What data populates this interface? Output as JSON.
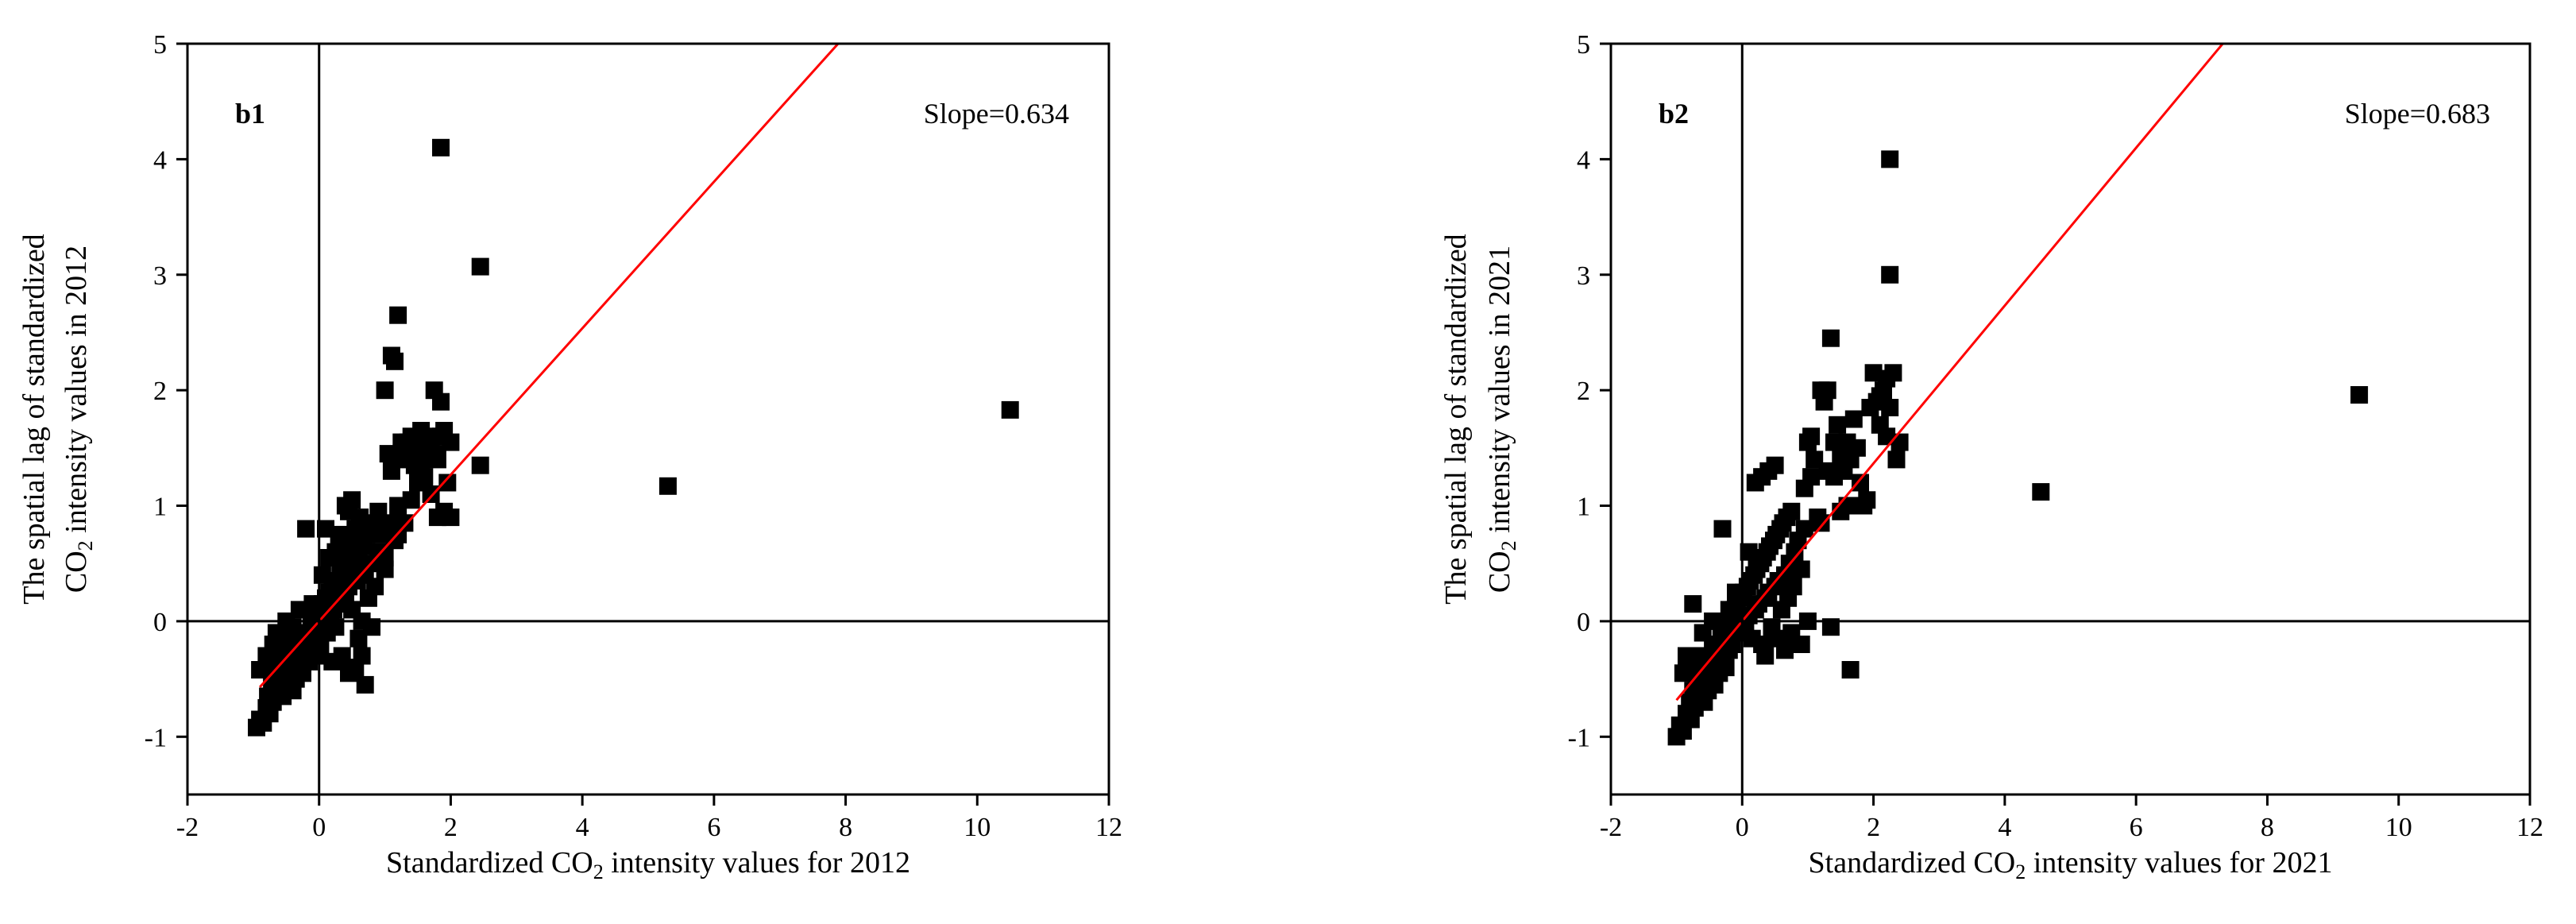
{
  "chart_data": [
    {
      "type": "scatter",
      "panel_label": "b1",
      "annotation": "Slope=0.634",
      "xlabel_parts": [
        "Standardized CO",
        "2",
        "  intensity values for 2012"
      ],
      "ylabel_line1": "The spatial lag of standardized",
      "ylabel_line2_parts": [
        "CO",
        "2",
        " intensity values in 2012"
      ],
      "xlim": [
        -2,
        12
      ],
      "ylim": [
        -1.5,
        5
      ],
      "xticks": [
        -2,
        0,
        2,
        4,
        6,
        8,
        10,
        12
      ],
      "yticks": [
        -1,
        0,
        1,
        2,
        3,
        4,
        5
      ],
      "grid": false,
      "reference_lines": {
        "x": 0,
        "y": 0
      },
      "fit_line": {
        "slope": 0.634,
        "x_start": -0.9,
        "x_end": 8.2,
        "color": "#ff0000"
      },
      "marker_color": "#000000",
      "points": [
        [
          -0.95,
          -0.92
        ],
        [
          -0.9,
          -0.85
        ],
        [
          -0.85,
          -0.88
        ],
        [
          -0.8,
          -0.75
        ],
        [
          -0.78,
          -0.65
        ],
        [
          -0.75,
          -0.8
        ],
        [
          -0.72,
          -0.55
        ],
        [
          -0.7,
          -0.7
        ],
        [
          -0.68,
          -0.45
        ],
        [
          -0.65,
          -0.6
        ],
        [
          -0.62,
          -0.35
        ],
        [
          -0.6,
          -0.5
        ],
        [
          -0.58,
          -0.25
        ],
        [
          -0.55,
          -0.65
        ],
        [
          -0.52,
          -0.4
        ],
        [
          -0.5,
          -0.55
        ],
        [
          -0.48,
          -0.3
        ],
        [
          -0.45,
          -0.45
        ],
        [
          -0.42,
          -0.2
        ],
        [
          -0.4,
          -0.6
        ],
        [
          -0.38,
          -0.35
        ],
        [
          -0.35,
          -0.5
        ],
        [
          -0.32,
          -0.15
        ],
        [
          -0.3,
          -0.4
        ],
        [
          -0.28,
          -0.25
        ],
        [
          -0.25,
          -0.45
        ],
        [
          -0.22,
          -0.1
        ],
        [
          -0.2,
          -0.3
        ],
        [
          -0.18,
          -0.2
        ],
        [
          -0.15,
          -0.35
        ],
        [
          -0.12,
          0.0
        ],
        [
          -0.1,
          -0.15
        ],
        [
          -0.08,
          -0.25
        ],
        [
          -0.05,
          0.05
        ],
        [
          -0.03,
          -0.1
        ],
        [
          0.0,
          0.1
        ],
        [
          0.02,
          -0.2
        ],
        [
          0.05,
          0.15
        ],
        [
          0.08,
          0.0
        ],
        [
          0.1,
          0.2
        ],
        [
          0.12,
          -0.1
        ],
        [
          0.15,
          0.25
        ],
        [
          0.18,
          0.05
        ],
        [
          0.2,
          0.3
        ],
        [
          0.22,
          0.1
        ],
        [
          0.25,
          -0.05
        ],
        [
          0.28,
          0.35
        ],
        [
          0.3,
          0.15
        ],
        [
          0.32,
          0.4
        ],
        [
          0.35,
          0.2
        ],
        [
          0.38,
          0.5
        ],
        [
          0.4,
          0.25
        ],
        [
          0.42,
          0.6
        ],
        [
          0.45,
          0.3
        ],
        [
          0.48,
          0.7
        ],
        [
          0.5,
          0.1
        ],
        [
          0.52,
          0.45
        ],
        [
          0.55,
          0.8
        ],
        [
          0.58,
          0.35
        ],
        [
          0.6,
          0.55
        ],
        [
          0.62,
          0.9
        ],
        [
          0.65,
          0.0
        ],
        [
          0.68,
          0.65
        ],
        [
          0.7,
          0.4
        ],
        [
          0.72,
          0.75
        ],
        [
          0.75,
          0.2
        ],
        [
          0.78,
          0.5
        ],
        [
          0.8,
          0.85
        ],
        [
          0.85,
          0.3
        ],
        [
          0.9,
          0.6
        ],
        [
          0.95,
          0.75
        ],
        [
          1.0,
          0.45
        ],
        [
          -0.3,
          0.1
        ],
        [
          -0.1,
          0.15
        ],
        [
          0.05,
          0.4
        ],
        [
          0.15,
          0.55
        ],
        [
          0.25,
          0.6
        ],
        [
          0.3,
          0.7
        ],
        [
          0.35,
          0.75
        ],
        [
          0.4,
          1.0
        ],
        [
          0.45,
          0.95
        ],
        [
          0.5,
          1.05
        ],
        [
          0.1,
          0.8
        ],
        [
          -0.2,
          0.8
        ],
        [
          0.35,
          -0.3
        ],
        [
          0.45,
          -0.45
        ],
        [
          0.55,
          -0.4
        ],
        [
          0.65,
          -0.3
        ],
        [
          0.7,
          -0.55
        ],
        [
          0.6,
          -0.15
        ],
        [
          0.8,
          -0.05
        ],
        [
          0.2,
          -0.35
        ],
        [
          0.0,
          -0.3
        ],
        [
          -0.6,
          -0.2
        ],
        [
          -0.5,
          0.0
        ],
        [
          -0.4,
          -0.05
        ],
        [
          -0.9,
          -0.42
        ],
        [
          -0.8,
          -0.3
        ],
        [
          -0.7,
          -0.2
        ],
        [
          -0.65,
          -0.1
        ],
        [
          1.0,
          2.0
        ],
        [
          1.1,
          2.3
        ],
        [
          1.15,
          2.25
        ],
        [
          1.2,
          2.65
        ],
        [
          1.05,
          1.45
        ],
        [
          1.1,
          1.3
        ],
        [
          1.2,
          1.0
        ],
        [
          1.3,
          1.4
        ],
        [
          1.35,
          1.55
        ],
        [
          1.4,
          1.6
        ],
        [
          1.45,
          1.35
        ],
        [
          1.5,
          1.5
        ],
        [
          1.55,
          1.65
        ],
        [
          1.6,
          1.45
        ],
        [
          1.65,
          1.6
        ],
        [
          1.7,
          1.55
        ],
        [
          1.75,
          2.0
        ],
        [
          1.8,
          1.4
        ],
        [
          1.85,
          1.9
        ],
        [
          1.9,
          1.65
        ],
        [
          1.95,
          1.2
        ],
        [
          1.7,
          1.1
        ],
        [
          1.8,
          0.9
        ],
        [
          1.9,
          0.95
        ],
        [
          2.0,
          0.9
        ],
        [
          1.6,
          1.25
        ],
        [
          1.5,
          1.2
        ],
        [
          1.4,
          1.05
        ],
        [
          1.3,
          0.85
        ],
        [
          1.2,
          0.75
        ],
        [
          1.15,
          0.7
        ],
        [
          1.05,
          0.85
        ],
        [
          1.0,
          0.55
        ],
        [
          0.9,
          0.95
        ],
        [
          1.25,
          1.55
        ],
        [
          1.35,
          1.45
        ],
        [
          1.55,
          1.35
        ],
        [
          1.75,
          1.45
        ],
        [
          1.85,
          1.6
        ],
        [
          2.0,
          1.55
        ],
        [
          1.85,
          4.1
        ],
        [
          2.45,
          3.07
        ],
        [
          2.45,
          1.35
        ],
        [
          5.3,
          1.17
        ],
        [
          10.5,
          1.83
        ]
      ]
    },
    {
      "type": "scatter",
      "panel_label": "b2",
      "annotation": "Slope=0.683",
      "xlabel_parts": [
        "Standardized CO",
        "2",
        "  intensity values for 2021"
      ],
      "ylabel_line1": "The spatial lag of standardized",
      "ylabel_line2_parts": [
        "CO",
        "2",
        " intensity values in 2021"
      ],
      "xlim": [
        -2,
        12
      ],
      "ylim": [
        -1.5,
        5
      ],
      "xticks": [
        -2,
        0,
        2,
        4,
        6,
        8,
        10,
        12
      ],
      "yticks": [
        -1,
        0,
        1,
        2,
        3,
        4,
        5
      ],
      "grid": false,
      "reference_lines": {
        "x": 0,
        "y": 0
      },
      "fit_line": {
        "slope": 0.683,
        "x_start": -1.0,
        "x_end": 7.5,
        "color": "#ff0000"
      },
      "marker_color": "#000000",
      "points": [
        [
          -1.0,
          -1.0
        ],
        [
          -0.95,
          -0.9
        ],
        [
          -0.9,
          -0.95
        ],
        [
          -0.85,
          -0.8
        ],
        [
          -0.8,
          -0.7
        ],
        [
          -0.78,
          -0.85
        ],
        [
          -0.75,
          -0.6
        ],
        [
          -0.72,
          -0.75
        ],
        [
          -0.7,
          -0.5
        ],
        [
          -0.68,
          -0.65
        ],
        [
          -0.65,
          -0.4
        ],
        [
          -0.62,
          -0.55
        ],
        [
          -0.6,
          -0.3
        ],
        [
          -0.58,
          -0.7
        ],
        [
          -0.55,
          -0.45
        ],
        [
          -0.52,
          -0.6
        ],
        [
          -0.5,
          -0.35
        ],
        [
          -0.48,
          -0.5
        ],
        [
          -0.45,
          -0.25
        ],
        [
          -0.42,
          -0.55
        ],
        [
          -0.4,
          -0.4
        ],
        [
          -0.38,
          -0.2
        ],
        [
          -0.35,
          -0.45
        ],
        [
          -0.32,
          -0.1
        ],
        [
          -0.3,
          -0.3
        ],
        [
          -0.28,
          -0.15
        ],
        [
          -0.25,
          -0.4
        ],
        [
          -0.22,
          -0.05
        ],
        [
          -0.2,
          -0.25
        ],
        [
          -0.18,
          0.05
        ],
        [
          -0.15,
          -0.2
        ],
        [
          -0.12,
          0.1
        ],
        [
          -0.1,
          -0.1
        ],
        [
          -0.08,
          0.15
        ],
        [
          -0.05,
          -0.05
        ],
        [
          -0.03,
          0.2
        ],
        [
          0.0,
          0.0
        ],
        [
          0.02,
          0.25
        ],
        [
          0.05,
          -0.1
        ],
        [
          0.08,
          0.3
        ],
        [
          0.1,
          0.05
        ],
        [
          0.12,
          0.35
        ],
        [
          0.15,
          -0.15
        ],
        [
          0.18,
          0.4
        ],
        [
          0.2,
          0.1
        ],
        [
          0.22,
          0.45
        ],
        [
          0.25,
          0.15
        ],
        [
          0.28,
          0.5
        ],
        [
          0.3,
          -0.2
        ],
        [
          0.32,
          0.55
        ],
        [
          0.35,
          0.2
        ],
        [
          0.38,
          0.6
        ],
        [
          0.4,
          0.25
        ],
        [
          0.42,
          0.65
        ],
        [
          0.45,
          -0.05
        ],
        [
          0.48,
          0.7
        ],
        [
          0.5,
          0.3
        ],
        [
          0.52,
          0.75
        ],
        [
          0.55,
          0.35
        ],
        [
          0.58,
          0.8
        ],
        [
          0.6,
          0.1
        ],
        [
          0.62,
          0.85
        ],
        [
          0.65,
          0.4
        ],
        [
          0.68,
          0.9
        ],
        [
          0.7,
          0.2
        ],
        [
          0.72,
          0.5
        ],
        [
          0.75,
          0.95
        ],
        [
          0.78,
          0.3
        ],
        [
          0.8,
          0.6
        ],
        [
          0.85,
          0.7
        ],
        [
          0.9,
          0.45
        ],
        [
          0.95,
          0.8
        ],
        [
          -0.75,
          0.15
        ],
        [
          -0.3,
          0.8
        ],
        [
          -0.1,
          0.25
        ],
        [
          0.1,
          0.6
        ],
        [
          0.2,
          1.2
        ],
        [
          0.3,
          1.25
        ],
        [
          0.4,
          1.3
        ],
        [
          0.5,
          1.35
        ],
        [
          0.35,
          -0.3
        ],
        [
          0.55,
          -0.15
        ],
        [
          0.65,
          -0.25
        ],
        [
          0.75,
          -0.1
        ],
        [
          0.9,
          -0.2
        ],
        [
          1.0,
          0.0
        ],
        [
          -0.85,
          -0.3
        ],
        [
          -0.9,
          -0.45
        ],
        [
          -0.6,
          -0.1
        ],
        [
          -0.45,
          0.0
        ],
        [
          -0.2,
          0.1
        ],
        [
          1.0,
          1.55
        ],
        [
          1.05,
          1.6
        ],
        [
          1.1,
          1.4
        ],
        [
          1.2,
          2.0
        ],
        [
          1.25,
          1.9
        ],
        [
          1.3,
          2.0
        ],
        [
          1.35,
          2.45
        ],
        [
          1.4,
          1.55
        ],
        [
          1.45,
          1.7
        ],
        [
          1.5,
          1.45
        ],
        [
          1.55,
          1.3
        ],
        [
          1.6,
          1.55
        ],
        [
          1.65,
          1.4
        ],
        [
          1.7,
          1.75
        ],
        [
          1.75,
          1.5
        ],
        [
          1.8,
          1.2
        ],
        [
          1.85,
          1.0
        ],
        [
          1.9,
          1.05
        ],
        [
          1.95,
          1.85
        ],
        [
          2.0,
          2.15
        ],
        [
          2.05,
          1.9
        ],
        [
          2.1,
          1.7
        ],
        [
          2.15,
          2.0
        ],
        [
          2.2,
          2.1
        ],
        [
          2.25,
          1.85
        ],
        [
          2.3,
          2.15
        ],
        [
          2.35,
          1.4
        ],
        [
          2.4,
          1.55
        ],
        [
          1.3,
          1.3
        ],
        [
          1.4,
          1.25
        ],
        [
          1.5,
          0.95
        ],
        [
          1.6,
          1.0
        ],
        [
          1.15,
          0.9
        ],
        [
          1.2,
          0.85
        ],
        [
          1.35,
          -0.05
        ],
        [
          1.65,
          -0.42
        ],
        [
          0.95,
          1.15
        ],
        [
          1.05,
          1.25
        ],
        [
          2.1,
          1.95
        ],
        [
          2.2,
          1.6
        ],
        [
          2.25,
          4.0
        ],
        [
          2.25,
          3.0
        ],
        [
          4.55,
          1.12
        ],
        [
          9.4,
          1.96
        ]
      ]
    }
  ]
}
